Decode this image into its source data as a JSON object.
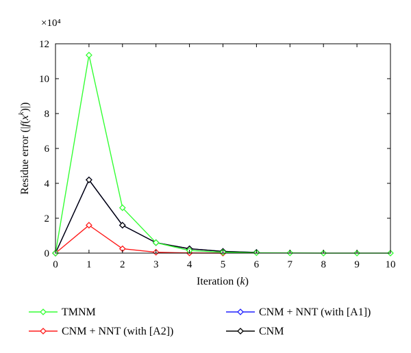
{
  "chart_data": {
    "type": "line",
    "x": [
      0,
      1,
      2,
      3,
      4,
      5,
      6,
      7,
      8,
      9,
      10
    ],
    "xlabel": "Iteration (k)",
    "ylabel": "Residue error (|f(x^k)|)",
    "multiplier_label": "×10⁴",
    "xlim": [
      0,
      10
    ],
    "ylim": [
      0,
      12
    ],
    "xticks": [
      0,
      1,
      2,
      3,
      4,
      5,
      6,
      7,
      8,
      9,
      10
    ],
    "yticks": [
      0,
      2,
      4,
      6,
      8,
      10,
      12
    ],
    "grid": false,
    "legend_position": "below plot, two columns",
    "series": [
      {
        "name": "TMNM",
        "color": "#33ff33",
        "x": [
          0,
          1,
          2,
          3,
          4,
          5,
          6,
          7,
          8,
          9,
          10
        ],
        "values": [
          0,
          11.35,
          2.6,
          0.6,
          0.15,
          0.05,
          0.02,
          0.01,
          0.0,
          0.0,
          0.0
        ]
      },
      {
        "name": "CNM + NNT (with [A1])",
        "color": "#1f1fff",
        "x": [
          0,
          1,
          2,
          3,
          4,
          5,
          6
        ],
        "values": [
          0,
          4.2,
          1.6,
          0.6,
          0.25,
          0.1,
          0.04
        ]
      },
      {
        "name": "CNM + NNT (with [A2])",
        "color": "#ff1a1a",
        "x": [
          0,
          1,
          2,
          3,
          4,
          5
        ],
        "values": [
          0,
          1.6,
          0.25,
          0.05,
          0.01,
          0.0
        ]
      },
      {
        "name": "CNM",
        "color": "#000000",
        "x": [
          0,
          1,
          2,
          3,
          4,
          5,
          6
        ],
        "values": [
          0,
          4.2,
          1.6,
          0.6,
          0.25,
          0.1,
          0.04
        ]
      }
    ]
  }
}
